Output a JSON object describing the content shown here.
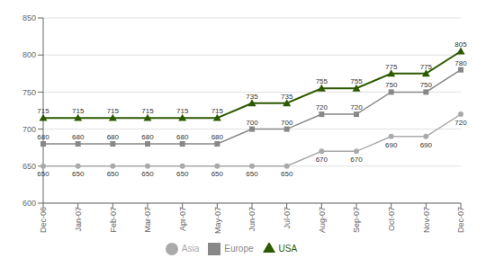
{
  "chart_data": {
    "type": "line",
    "categories": [
      "Dec-06",
      "Jan-07",
      "Feb-07",
      "Mar-07",
      "Apr-07",
      "May-07",
      "Jun-07",
      "Jul-07",
      "Aug-07",
      "Sep-07",
      "Oct-07",
      "Nov-07",
      "Dec-07"
    ],
    "series": [
      {
        "name": "Asia",
        "color": "#aaaaaa",
        "marker": "circle",
        "values": [
          650,
          650,
          650,
          650,
          650,
          650,
          650,
          650,
          670,
          670,
          690,
          690,
          720
        ]
      },
      {
        "name": "Europe",
        "color": "#888888",
        "marker": "square",
        "values": [
          680,
          680,
          680,
          680,
          680,
          680,
          700,
          700,
          720,
          720,
          750,
          750,
          780
        ]
      },
      {
        "name": "USA",
        "color": "#2d5a00",
        "marker": "triangle",
        "values": [
          715,
          715,
          715,
          715,
          715,
          715,
          735,
          735,
          755,
          755,
          775,
          775,
          805
        ]
      }
    ],
    "ylim": [
      600,
      850
    ],
    "yticks": [
      600,
      650,
      700,
      750,
      800,
      850
    ],
    "grid": true,
    "legend": "bottom",
    "data_labels": true
  }
}
